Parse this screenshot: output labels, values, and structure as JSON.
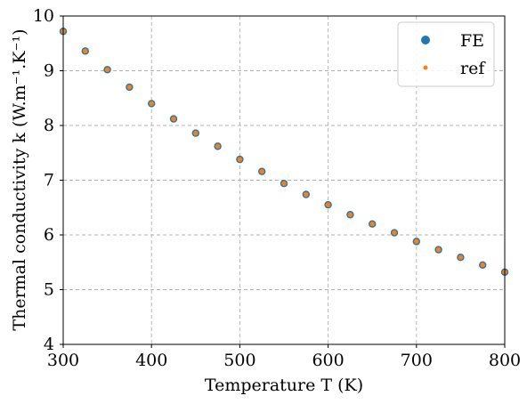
{
  "chart_data": {
    "type": "scatter",
    "xlabel": "Temperature T (K)",
    "ylabel": "Thermal conductivity k (W.m⁻¹.K⁻¹)",
    "xlim": [
      300,
      800
    ],
    "ylim": [
      4,
      10
    ],
    "x_ticks": [
      "300",
      "400",
      "500",
      "600",
      "700",
      "800"
    ],
    "y_ticks": [
      "4",
      "5",
      "6",
      "7",
      "8",
      "9",
      "10"
    ],
    "grid": true,
    "grid_style": "dashed",
    "legend_position": "top-right",
    "x": [
      300,
      325,
      350,
      375,
      400,
      425,
      450,
      475,
      500,
      525,
      550,
      575,
      600,
      625,
      650,
      675,
      700,
      725,
      750,
      775,
      800
    ],
    "series": [
      {
        "name": "FE",
        "color": "#1f77b4",
        "marker": "large-circle",
        "values": [
          9.72,
          9.36,
          9.02,
          8.7,
          8.4,
          8.12,
          7.86,
          7.62,
          7.38,
          7.16,
          6.94,
          6.74,
          6.55,
          6.37,
          6.2,
          6.04,
          5.88,
          5.73,
          5.59,
          5.45,
          5.32
        ]
      },
      {
        "name": "ref",
        "color": "#ff7f0e",
        "marker": "small-circle",
        "values": [
          9.72,
          9.36,
          9.02,
          8.7,
          8.4,
          8.12,
          7.86,
          7.62,
          7.38,
          7.16,
          6.94,
          6.74,
          6.55,
          6.37,
          6.2,
          6.04,
          5.88,
          5.73,
          5.59,
          5.45,
          5.32
        ]
      }
    ]
  }
}
